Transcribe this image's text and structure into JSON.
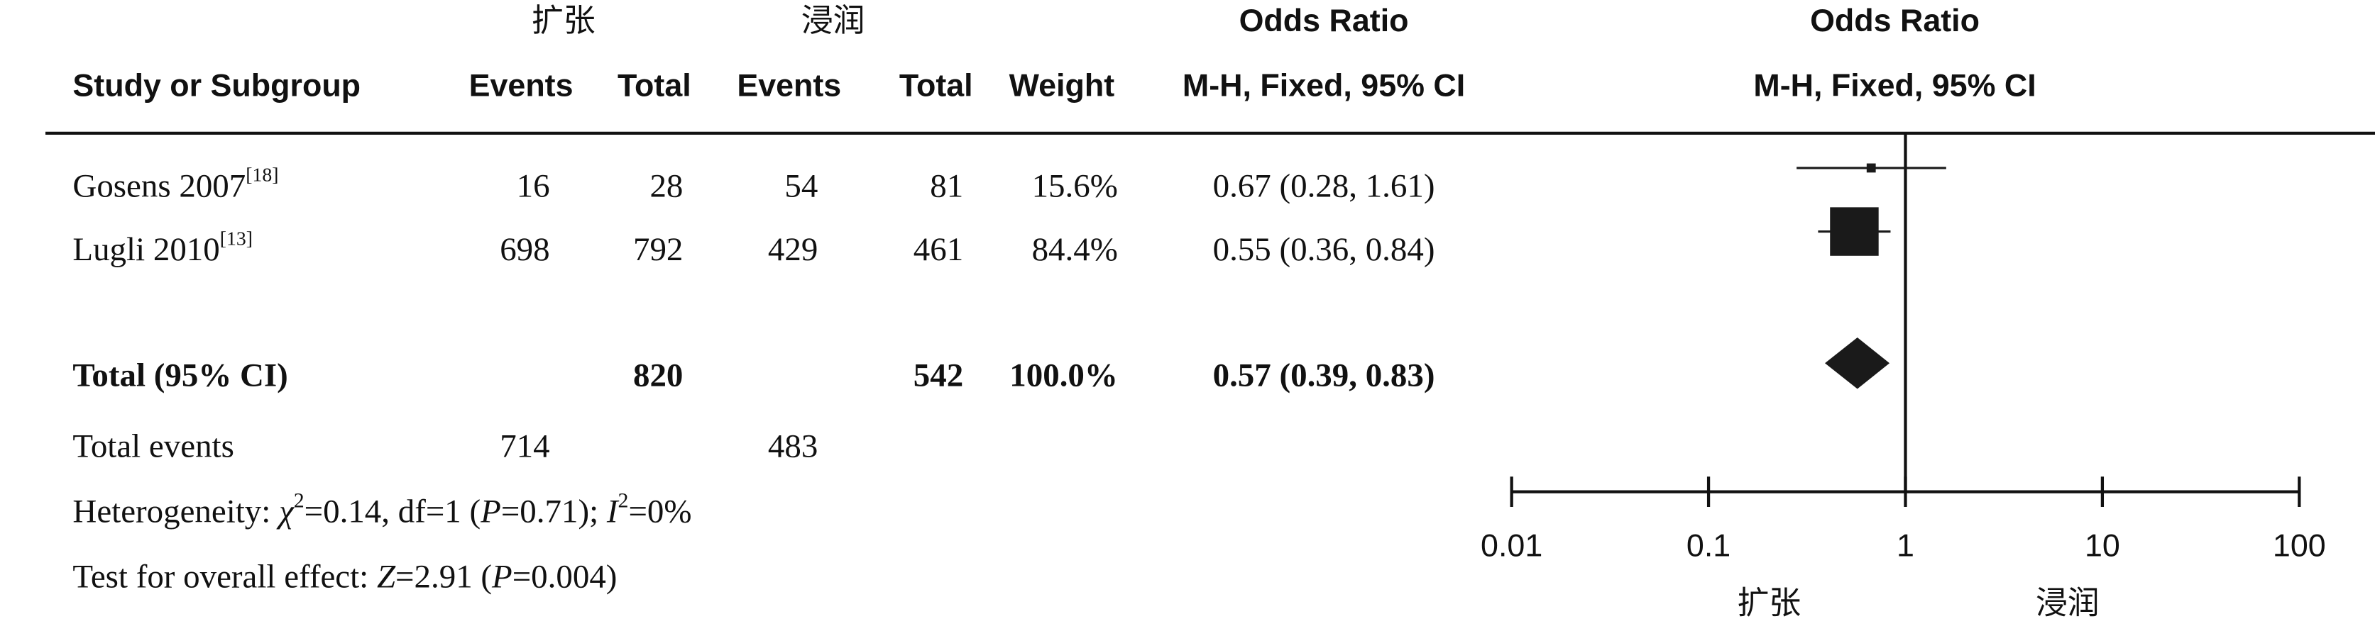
{
  "chart_data": {
    "type": "forest",
    "group_labels": [
      "扩张",
      "浸润"
    ],
    "columns": [
      "Study or Subgroup",
      "Events",
      "Total",
      "Events",
      "Total",
      "Weight"
    ],
    "effect_header": "Odds Ratio",
    "effect_subheader": "M-H, Fixed, 95% CI",
    "studies": [
      {
        "name": "Gosens 2007",
        "ref": "[18]",
        "events1": 16,
        "total1": 28,
        "events2": 54,
        "total2": 81,
        "weight": 15.6,
        "weight_label": "15.6%",
        "or": 0.67,
        "ci": [
          0.28,
          1.61
        ],
        "ci_label": "0.67 (0.28, 1.61)"
      },
      {
        "name": "Lugli 2010",
        "ref": "[13]",
        "events1": 698,
        "total1": 792,
        "events2": 429,
        "total2": 461,
        "weight": 84.4,
        "weight_label": "84.4%",
        "or": 0.55,
        "ci": [
          0.36,
          0.84
        ],
        "ci_label": "0.55 (0.36, 0.84)"
      }
    ],
    "total": {
      "name": "Total (95% CI)",
      "total1": 820,
      "total2": 542,
      "weight": 100.0,
      "weight_label": "100.0%",
      "or": 0.57,
      "ci": [
        0.39,
        0.83
      ],
      "ci_label": "0.57 (0.39, 0.83)"
    },
    "total_events": {
      "name": "Total events",
      "events1": 714,
      "events2": 483
    },
    "heterogeneity": [
      {
        "text": "Heterogeneity: ",
        "style": "normal"
      },
      {
        "text": "χ",
        "style": "italic"
      },
      {
        "text": "2",
        "style": "sup"
      },
      {
        "text": "=0.14, df=1 (",
        "style": "normal"
      },
      {
        "text": "P",
        "style": "italic"
      },
      {
        "text": "=0.71); ",
        "style": "normal"
      },
      {
        "text": "I",
        "style": "italic"
      },
      {
        "text": "2",
        "style": "sup"
      },
      {
        "text": "=0%",
        "style": "normal"
      }
    ],
    "overall_effect": [
      {
        "text": "Test for overall effect: ",
        "style": "normal"
      },
      {
        "text": "Z",
        "style": "italic"
      },
      {
        "text": "=2.91 (",
        "style": "normal"
      },
      {
        "text": "P",
        "style": "italic"
      },
      {
        "text": "=0.004)",
        "style": "normal"
      }
    ],
    "xscale": "log",
    "xlim": [
      0.01,
      100
    ],
    "xticks": [
      0.01,
      0.1,
      1,
      10,
      100
    ],
    "favours": [
      "扩张",
      "浸润"
    ],
    "color": "#1a1a1a"
  }
}
